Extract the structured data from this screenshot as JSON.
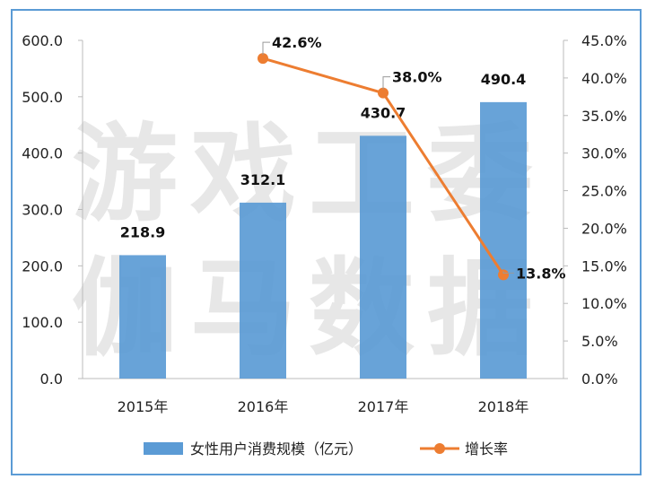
{
  "watermark": [
    "游戏工委",
    "伽马数据"
  ],
  "chart_data": {
    "type": "bar+line",
    "categories": [
      "2015年",
      "2016年",
      "2017年",
      "2018年"
    ],
    "series": [
      {
        "name": "女性用户消费规模（亿元）",
        "type": "bar",
        "axis": "left",
        "values": [
          218.9,
          312.1,
          430.7,
          490.4
        ],
        "labels": [
          "218.9",
          "312.1",
          "430.7",
          "490.4"
        ],
        "color": "#5b9bd5"
      },
      {
        "name": "增长率",
        "type": "line",
        "axis": "right",
        "values": [
          null,
          42.6,
          38.0,
          13.8
        ],
        "labels": [
          "",
          "42.6%",
          "38.0%",
          "13.8%"
        ],
        "color": "#ed7d31"
      }
    ],
    "left_axis": {
      "ylim": [
        0,
        600
      ],
      "ticks": [
        "0.0",
        "100.0",
        "200.0",
        "300.0",
        "400.0",
        "500.0",
        "600.0"
      ]
    },
    "right_axis": {
      "ylim": [
        0,
        45
      ],
      "ticks": [
        "0.0%",
        "5.0%",
        "10.0%",
        "15.0%",
        "20.0%",
        "25.0%",
        "30.0%",
        "35.0%",
        "40.0%",
        "45.0%"
      ]
    },
    "grid": false,
    "legend": "bottom"
  }
}
